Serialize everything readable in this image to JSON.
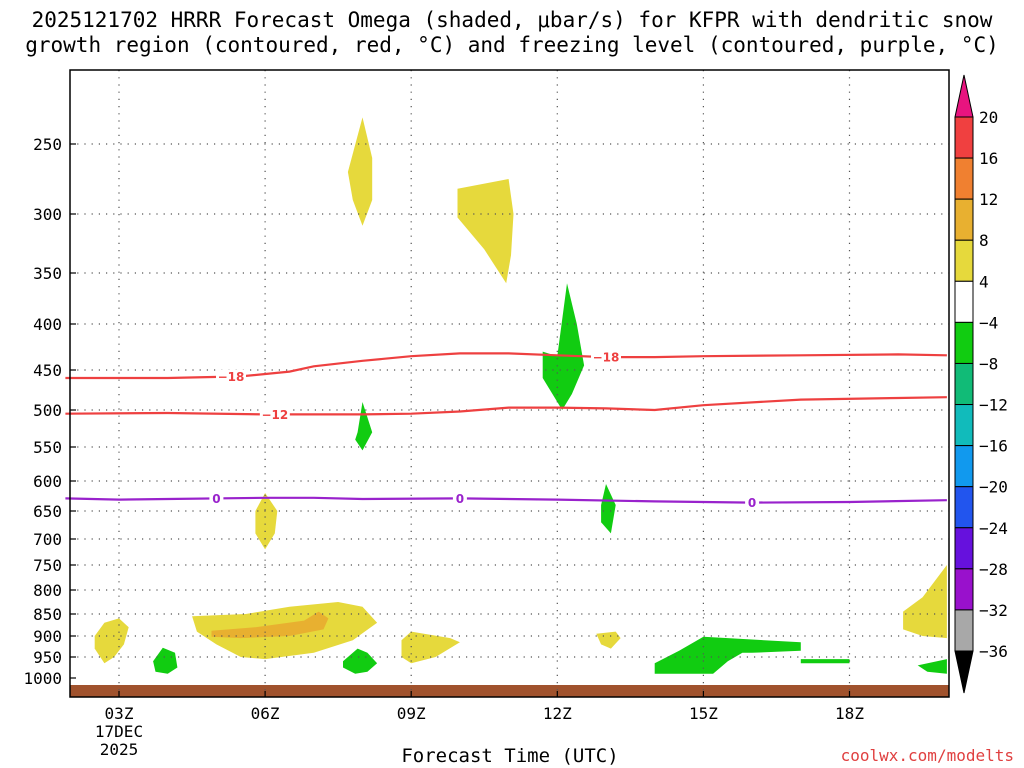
{
  "title": {
    "line1": "2025121702 HRRR Forecast Omega (shaded, μbar/s) for KFPR with dendritic snow",
    "line2": "growth region (contoured, red, °C) and freezing level (contoured, purple, °C)"
  },
  "credit": "coolwx.com/modelts",
  "chart_data": {
    "type": "time-height cross section",
    "xlabel": "Forecast Time (UTC)",
    "x_range_hours": [
      1.9,
      20.0
    ],
    "x_ticks": [
      {
        "hour": 3,
        "label": "03Z",
        "sub": [
          "17DEC",
          "2025"
        ]
      },
      {
        "hour": 6,
        "label": "06Z"
      },
      {
        "hour": 9,
        "label": "09Z"
      },
      {
        "hour": 12,
        "label": "12Z"
      },
      {
        "hour": 15,
        "label": "15Z"
      },
      {
        "hour": 18,
        "label": "18Z"
      }
    ],
    "y_ticks": [
      250,
      300,
      350,
      400,
      450,
      500,
      550,
      600,
      650,
      700,
      750,
      800,
      850,
      900,
      950,
      1000
    ],
    "y_ticks_labels": [
      "250",
      "300",
      "350",
      "400",
      "450",
      "500",
      "550",
      "600",
      "650",
      "700",
      "750",
      "800",
      "850",
      "900",
      "950",
      "1000"
    ],
    "colorbar": {
      "labels": [
        "20",
        "16",
        "12",
        "8",
        "4",
        "-4",
        "-8",
        "-12",
        "-16",
        "-20",
        "-24",
        "-28",
        "-32",
        "-36"
      ],
      "colors": [
        "#e8147f",
        "#f04040",
        "#f08030",
        "#e8b030",
        "#e6d93c",
        "#ffffff",
        "#11cc11",
        "#11bb77",
        "#11bbbb",
        "#1199ee",
        "#2255ee",
        "#6611dd",
        "#9911cc",
        "#a8a8a8",
        "#000000"
      ]
    },
    "contours": [
      {
        "name": "dgz-minus-18",
        "value": -18,
        "label": "-18",
        "color": "#ee4040",
        "points": [
          [
            1.9,
            460
          ],
          [
            4,
            460
          ],
          [
            5.5,
            458
          ],
          [
            6.5,
            452
          ],
          [
            7,
            446
          ],
          [
            8,
            440
          ],
          [
            9,
            435
          ],
          [
            10,
            432
          ],
          [
            11,
            432
          ],
          [
            12,
            434
          ],
          [
            13,
            436
          ],
          [
            14,
            436
          ],
          [
            15,
            435
          ],
          [
            17,
            434
          ],
          [
            19,
            433
          ],
          [
            20,
            434
          ]
        ],
        "label_hours": [
          5.3,
          13.0
        ]
      },
      {
        "name": "dgz-minus-12",
        "value": -12,
        "label": "-12",
        "color": "#ee4040",
        "points": [
          [
            1.9,
            505
          ],
          [
            4,
            504
          ],
          [
            6,
            506
          ],
          [
            8,
            506
          ],
          [
            9,
            505
          ],
          [
            10,
            502
          ],
          [
            11,
            497
          ],
          [
            12,
            497
          ],
          [
            13,
            498
          ],
          [
            14,
            500
          ],
          [
            15,
            494
          ],
          [
            17,
            487
          ],
          [
            19,
            485
          ],
          [
            20,
            484
          ]
        ],
        "label_hours": [
          6.2
        ]
      },
      {
        "name": "freezing-level-0",
        "value": 0,
        "label": "0",
        "color": "#9922cc",
        "points": [
          [
            1.9,
            629
          ],
          [
            3,
            631
          ],
          [
            4,
            630
          ],
          [
            6,
            628
          ],
          [
            7,
            628
          ],
          [
            8,
            630
          ],
          [
            10,
            629
          ],
          [
            12,
            631
          ],
          [
            14,
            634
          ],
          [
            16,
            636
          ],
          [
            18,
            635
          ],
          [
            20,
            632
          ]
        ],
        "label_hours": [
          5.0,
          10.0,
          16.0
        ]
      }
    ],
    "shaded_regions": [
      {
        "value_class": "4 to 8",
        "color": "#e6d93c",
        "points": [
          [
            7.7,
            270
          ],
          [
            8,
            232
          ],
          [
            8.2,
            260
          ],
          [
            8.2,
            290
          ],
          [
            8,
            310
          ],
          [
            7.8,
            290
          ]
        ]
      },
      {
        "value_class": "4 to 8",
        "color": "#e6d93c",
        "points": [
          [
            9.95,
            282
          ],
          [
            11,
            275
          ],
          [
            11.1,
            300
          ],
          [
            11.05,
            335
          ],
          [
            10.95,
            360
          ],
          [
            10.5,
            330
          ],
          [
            9.95,
            303
          ]
        ]
      },
      {
        "value_class": "4 to 8",
        "color": "#e6d93c",
        "points": [
          [
            5.8,
            650
          ],
          [
            6,
            620
          ],
          [
            6.25,
            650
          ],
          [
            6.2,
            690
          ],
          [
            6,
            720
          ],
          [
            5.8,
            690
          ]
        ]
      },
      {
        "value_class": "4 to 8",
        "color": "#e6d93c",
        "points": [
          [
            2.5,
            900
          ],
          [
            2.7,
            870
          ],
          [
            3,
            860
          ],
          [
            3.2,
            880
          ],
          [
            3.1,
            920
          ],
          [
            2.9,
            950
          ],
          [
            2.7,
            965
          ],
          [
            2.5,
            930
          ]
        ]
      },
      {
        "value_class": "4 to 8",
        "color": "#e6d93c",
        "points": [
          [
            5.6,
            850
          ],
          [
            6.5,
            835
          ],
          [
            7.5,
            825
          ],
          [
            8,
            835
          ],
          [
            8.3,
            870
          ],
          [
            7.8,
            910
          ],
          [
            7,
            940
          ],
          [
            6,
            955
          ],
          [
            5.5,
            950
          ],
          [
            5,
            920
          ],
          [
            4.6,
            890
          ],
          [
            4.5,
            855
          ]
        ]
      },
      {
        "value_class": "4 to 8",
        "color": "#e6d93c",
        "points": [
          [
            8.8,
            910
          ],
          [
            9,
            890
          ],
          [
            9.8,
            905
          ],
          [
            10,
            915
          ],
          [
            9.5,
            950
          ],
          [
            9,
            965
          ],
          [
            8.8,
            950
          ]
        ]
      },
      {
        "value_class": "4 to 8",
        "color": "#e6d93c",
        "points": [
          [
            12.8,
            895
          ],
          [
            13.2,
            890
          ],
          [
            13.3,
            905
          ],
          [
            13.1,
            930
          ],
          [
            12.9,
            920
          ]
        ]
      },
      {
        "value_class": "4 to 8",
        "color": "#e6d93c",
        "points": [
          [
            19.1,
            845
          ],
          [
            19.5,
            815
          ],
          [
            20,
            750
          ],
          [
            20,
            905
          ],
          [
            19.5,
            900
          ],
          [
            19.1,
            885
          ]
        ]
      },
      {
        "value_class": "8 to 12",
        "color": "#e8b030",
        "points": [
          [
            4.9,
            888
          ],
          [
            5.8,
            880
          ],
          [
            6.8,
            865
          ],
          [
            7.1,
            845
          ],
          [
            7.3,
            860
          ],
          [
            7.2,
            885
          ],
          [
            6.5,
            900
          ],
          [
            5.5,
            905
          ],
          [
            4.9,
            902
          ]
        ]
      },
      {
        "value_class": "-8 to -4",
        "color": "#11cc11",
        "points": [
          [
            12,
            435
          ],
          [
            12.2,
            360
          ],
          [
            12.4,
            400
          ],
          [
            12.55,
            445
          ],
          [
            12.3,
            480
          ],
          [
            12.1,
            500
          ],
          [
            11.7,
            460
          ],
          [
            11.7,
            430
          ]
        ]
      },
      {
        "value_class": "-8 to -4",
        "color": "#11cc11",
        "points": [
          [
            7.9,
            530
          ],
          [
            8,
            490
          ],
          [
            8.2,
            530
          ],
          [
            8,
            555
          ],
          [
            7.85,
            540
          ]
        ]
      },
      {
        "value_class": "-8 to -4",
        "color": "#11cc11",
        "points": [
          [
            12.9,
            640
          ],
          [
            13,
            605
          ],
          [
            13.2,
            640
          ],
          [
            13.1,
            690
          ],
          [
            12.9,
            670
          ]
        ]
      },
      {
        "value_class": "-8 to -4",
        "color": "#11cc11",
        "points": [
          [
            3.7,
            960
          ],
          [
            3.9,
            928
          ],
          [
            4.15,
            940
          ],
          [
            4.2,
            975
          ],
          [
            4,
            990
          ],
          [
            3.75,
            985
          ]
        ]
      },
      {
        "value_class": "-8 to -4",
        "color": "#11cc11",
        "points": [
          [
            7.6,
            960
          ],
          [
            7.9,
            930
          ],
          [
            8.1,
            940
          ],
          [
            8.3,
            965
          ],
          [
            8.1,
            985
          ],
          [
            7.85,
            990
          ],
          [
            7.6,
            975
          ]
        ]
      },
      {
        "value_class": "-8 to -4",
        "color": "#11cc11",
        "points": [
          [
            14,
            965
          ],
          [
            14.5,
            935
          ],
          [
            15,
            902
          ],
          [
            15.5,
            905
          ],
          [
            17,
            915
          ],
          [
            17,
            935
          ],
          [
            16.0,
            940
          ],
          [
            15.8,
            940
          ],
          [
            15.5,
            960
          ],
          [
            15.2,
            990
          ],
          [
            14,
            990
          ]
        ]
      },
      {
        "value_class": "-8 to -4",
        "color": "#11cc11",
        "points": [
          [
            17,
            955
          ],
          [
            18,
            955
          ],
          [
            18,
            965
          ],
          [
            17,
            965
          ]
        ]
      },
      {
        "value_class": "-8 to -4",
        "color": "#11cc11",
        "points": [
          [
            19.4,
            970
          ],
          [
            20,
            955
          ],
          [
            20,
            990
          ],
          [
            19.6,
            985
          ]
        ]
      }
    ],
    "ground_color": "#a0522d"
  }
}
